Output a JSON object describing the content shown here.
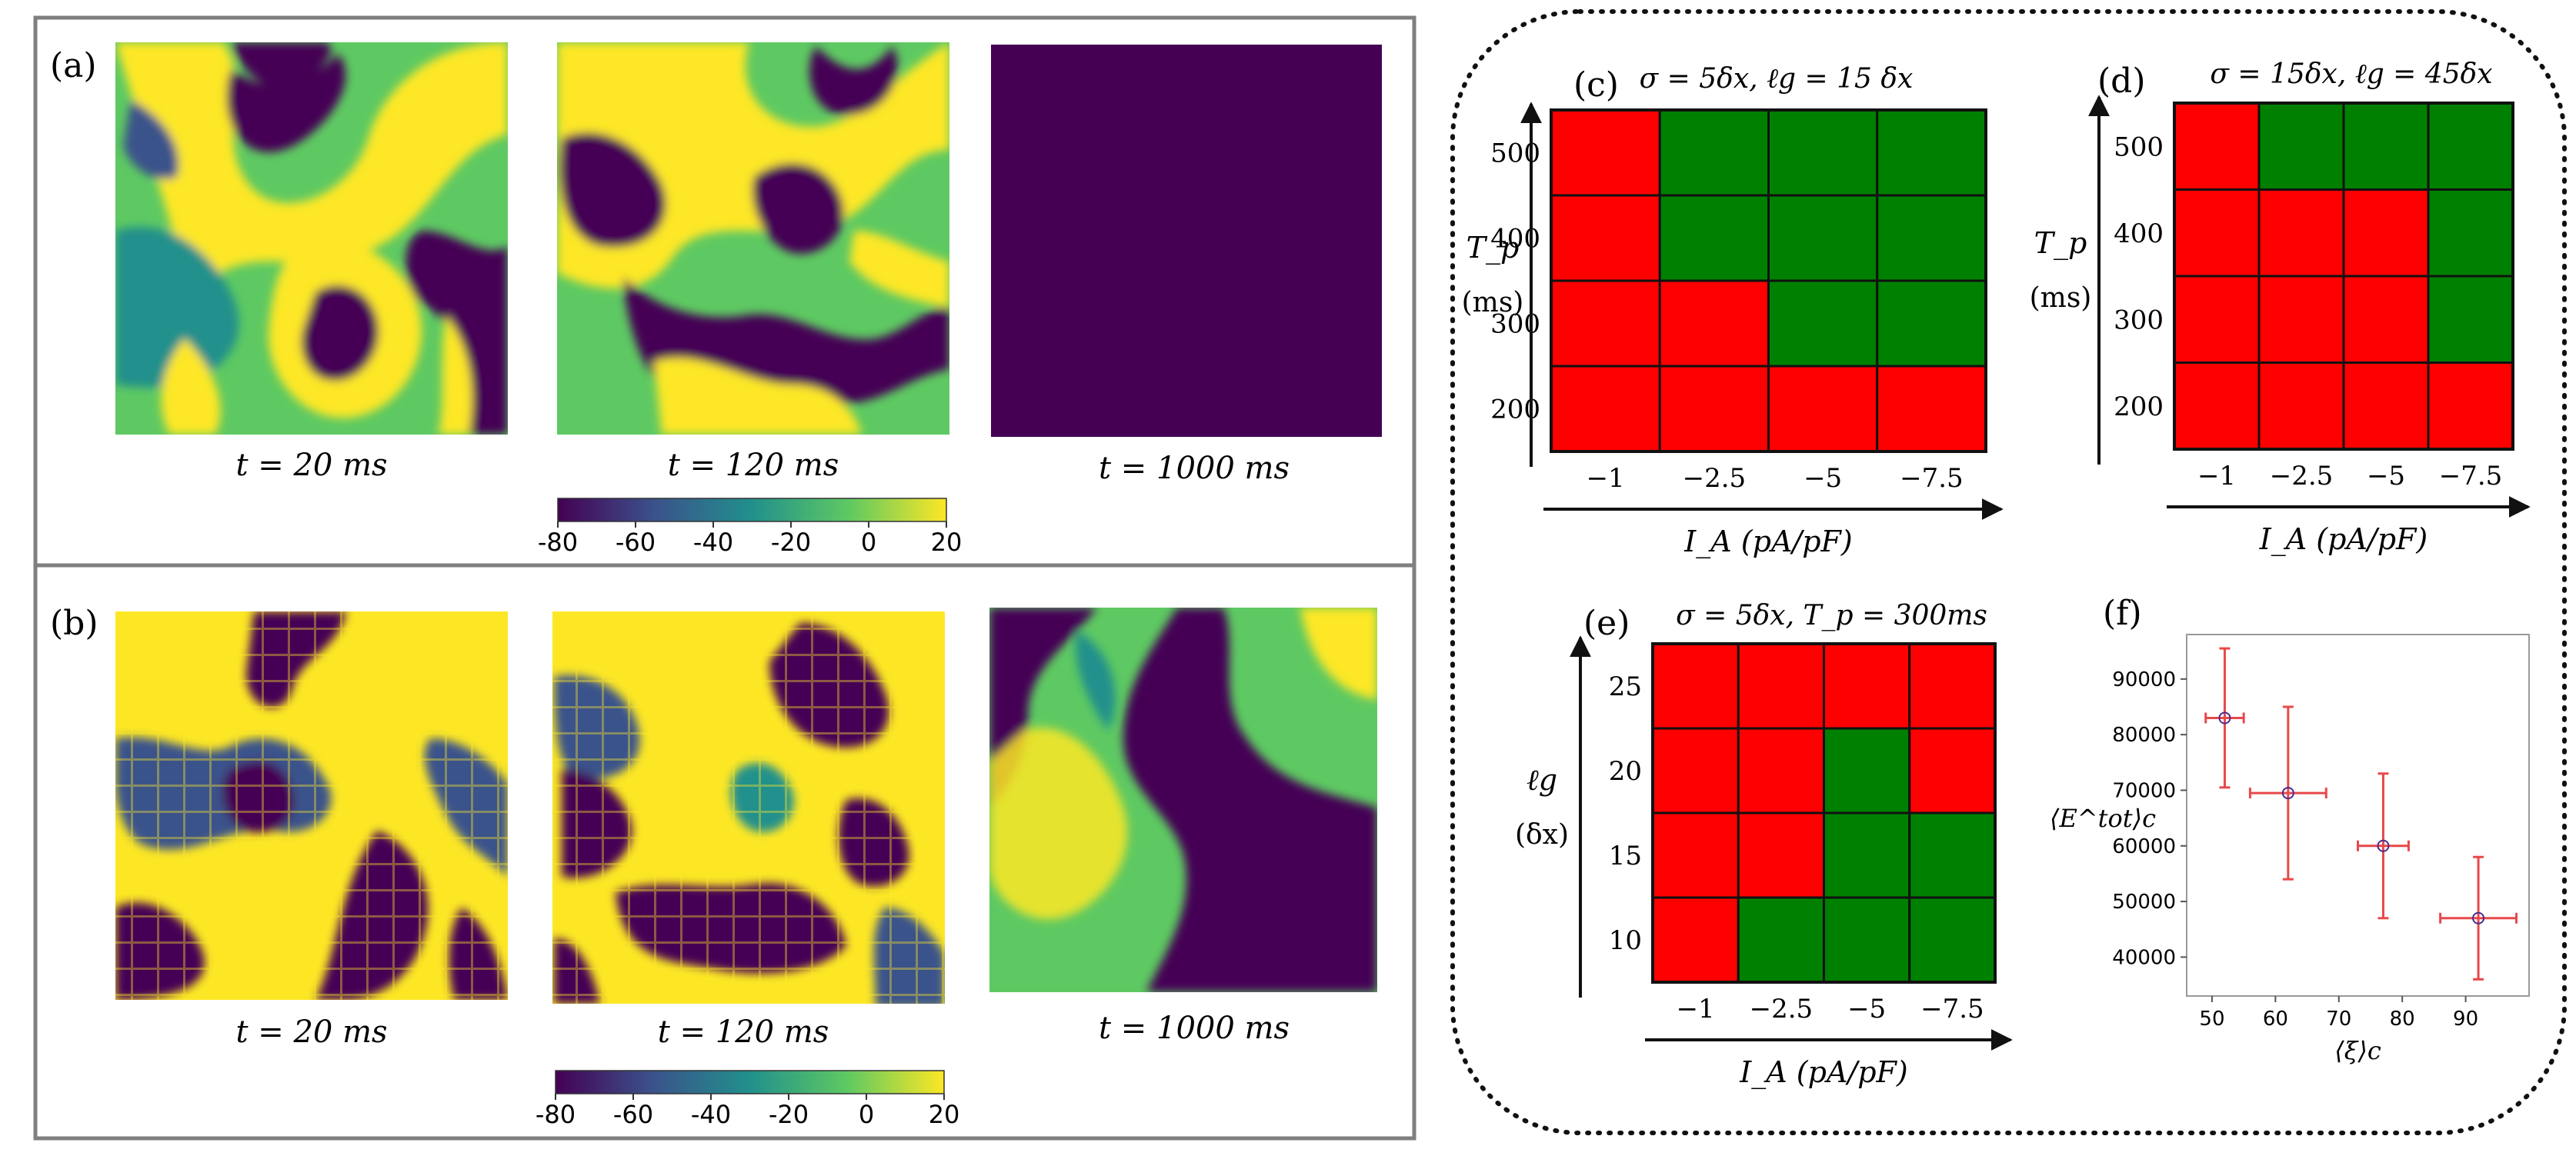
{
  "colors": {
    "viridis_dark": "#440154",
    "viridis_blue": "#3b528b",
    "viridis_teal": "#21908c",
    "viridis_green": "#5ec962",
    "viridis_yellow": "#fde725",
    "cell_red": "#ff0000",
    "cell_green": "#008000",
    "frame_gray": "#7f7f7f",
    "marker_purple": "#4b2c8f",
    "errorbar_red": "#e8494a"
  },
  "left": {
    "panel_a": {
      "label": "(a)",
      "images": [
        {
          "caption": "t = 20 ms",
          "pattern": "spiral-waves"
        },
        {
          "caption": "t = 120 ms",
          "pattern": "spiral-waves"
        },
        {
          "caption": "t = 1000 ms",
          "pattern": "uniform-rest"
        }
      ],
      "colorbar": {
        "ticks": [
          "-80",
          "-60",
          "-40",
          "-20",
          "0",
          "20"
        ],
        "min": -80,
        "max": 20
      }
    },
    "panel_b": {
      "label": "(b)",
      "images": [
        {
          "caption": "t = 20 ms",
          "pattern": "grid-waves"
        },
        {
          "caption": "t = 120 ms",
          "pattern": "grid-waves"
        },
        {
          "caption": "t = 1000 ms",
          "pattern": "smooth-waves"
        }
      ],
      "colorbar": {
        "ticks": [
          "-80",
          "-60",
          "-40",
          "-20",
          "0",
          "20"
        ],
        "min": -80,
        "max": 20
      }
    }
  },
  "chart_data": [
    {
      "id": "c",
      "type": "heatmap",
      "label": "(c)",
      "title": "σ = 5δx, ℓg = 15 δx",
      "xlabel": "I_A (pA/pF)",
      "ylabel_top": "T_p",
      "ylabel_bottom": "(ms)",
      "x_categories": [
        "−1",
        "−2.5",
        "−5",
        "−7.5"
      ],
      "y_categories": [
        "500",
        "400",
        "300",
        "200"
      ],
      "cells": [
        [
          "R",
          "G",
          "G",
          "G"
        ],
        [
          "R",
          "G",
          "G",
          "G"
        ],
        [
          "R",
          "R",
          "G",
          "G"
        ],
        [
          "R",
          "R",
          "R",
          "R"
        ]
      ]
    },
    {
      "id": "d",
      "type": "heatmap",
      "label": "(d)",
      "title": "σ = 15δx, ℓg = 45δx",
      "xlabel": "I_A (pA/pF)",
      "ylabel_top": "T_p",
      "ylabel_bottom": "(ms)",
      "x_categories": [
        "−1",
        "−2.5",
        "−5",
        "−7.5"
      ],
      "y_categories": [
        "500",
        "400",
        "300",
        "200"
      ],
      "cells": [
        [
          "R",
          "G",
          "G",
          "G"
        ],
        [
          "R",
          "R",
          "R",
          "G"
        ],
        [
          "R",
          "R",
          "R",
          "G"
        ],
        [
          "R",
          "R",
          "R",
          "R"
        ]
      ]
    },
    {
      "id": "e",
      "type": "heatmap",
      "label": "(e)",
      "title": "σ = 5δx, T_p = 300ms",
      "xlabel": "I_A (pA/pF)",
      "ylabel_top": "ℓg",
      "ylabel_bottom": "(δx)",
      "x_categories": [
        "−1",
        "−2.5",
        "−5",
        "−7.5"
      ],
      "y_categories": [
        "25",
        "20",
        "15",
        "10"
      ],
      "cells": [
        [
          "R",
          "R",
          "R",
          "R"
        ],
        [
          "R",
          "R",
          "G",
          "R"
        ],
        [
          "R",
          "R",
          "G",
          "G"
        ],
        [
          "R",
          "G",
          "G",
          "G"
        ]
      ]
    },
    {
      "id": "f",
      "type": "scatter",
      "label": "(f)",
      "xlabel": "⟨ξ⟩c",
      "ylabel": "⟨E^tot⟩c",
      "x_ticks": [
        50,
        60,
        70,
        80,
        90
      ],
      "y_ticks": [
        40000,
        50000,
        60000,
        70000,
        80000,
        90000
      ],
      "xlim": [
        46,
        100
      ],
      "ylim": [
        33000,
        98000
      ],
      "points": [
        {
          "x": 52,
          "y": 83000,
          "xerr": 3,
          "yerr": 12500
        },
        {
          "x": 62,
          "y": 69500,
          "xerr": 6,
          "yerr": 15500
        },
        {
          "x": 77,
          "y": 60000,
          "xerr": 4,
          "yerr": 13000
        },
        {
          "x": 92,
          "y": 47000,
          "xerr": 6,
          "yerr": 11000
        }
      ]
    }
  ]
}
